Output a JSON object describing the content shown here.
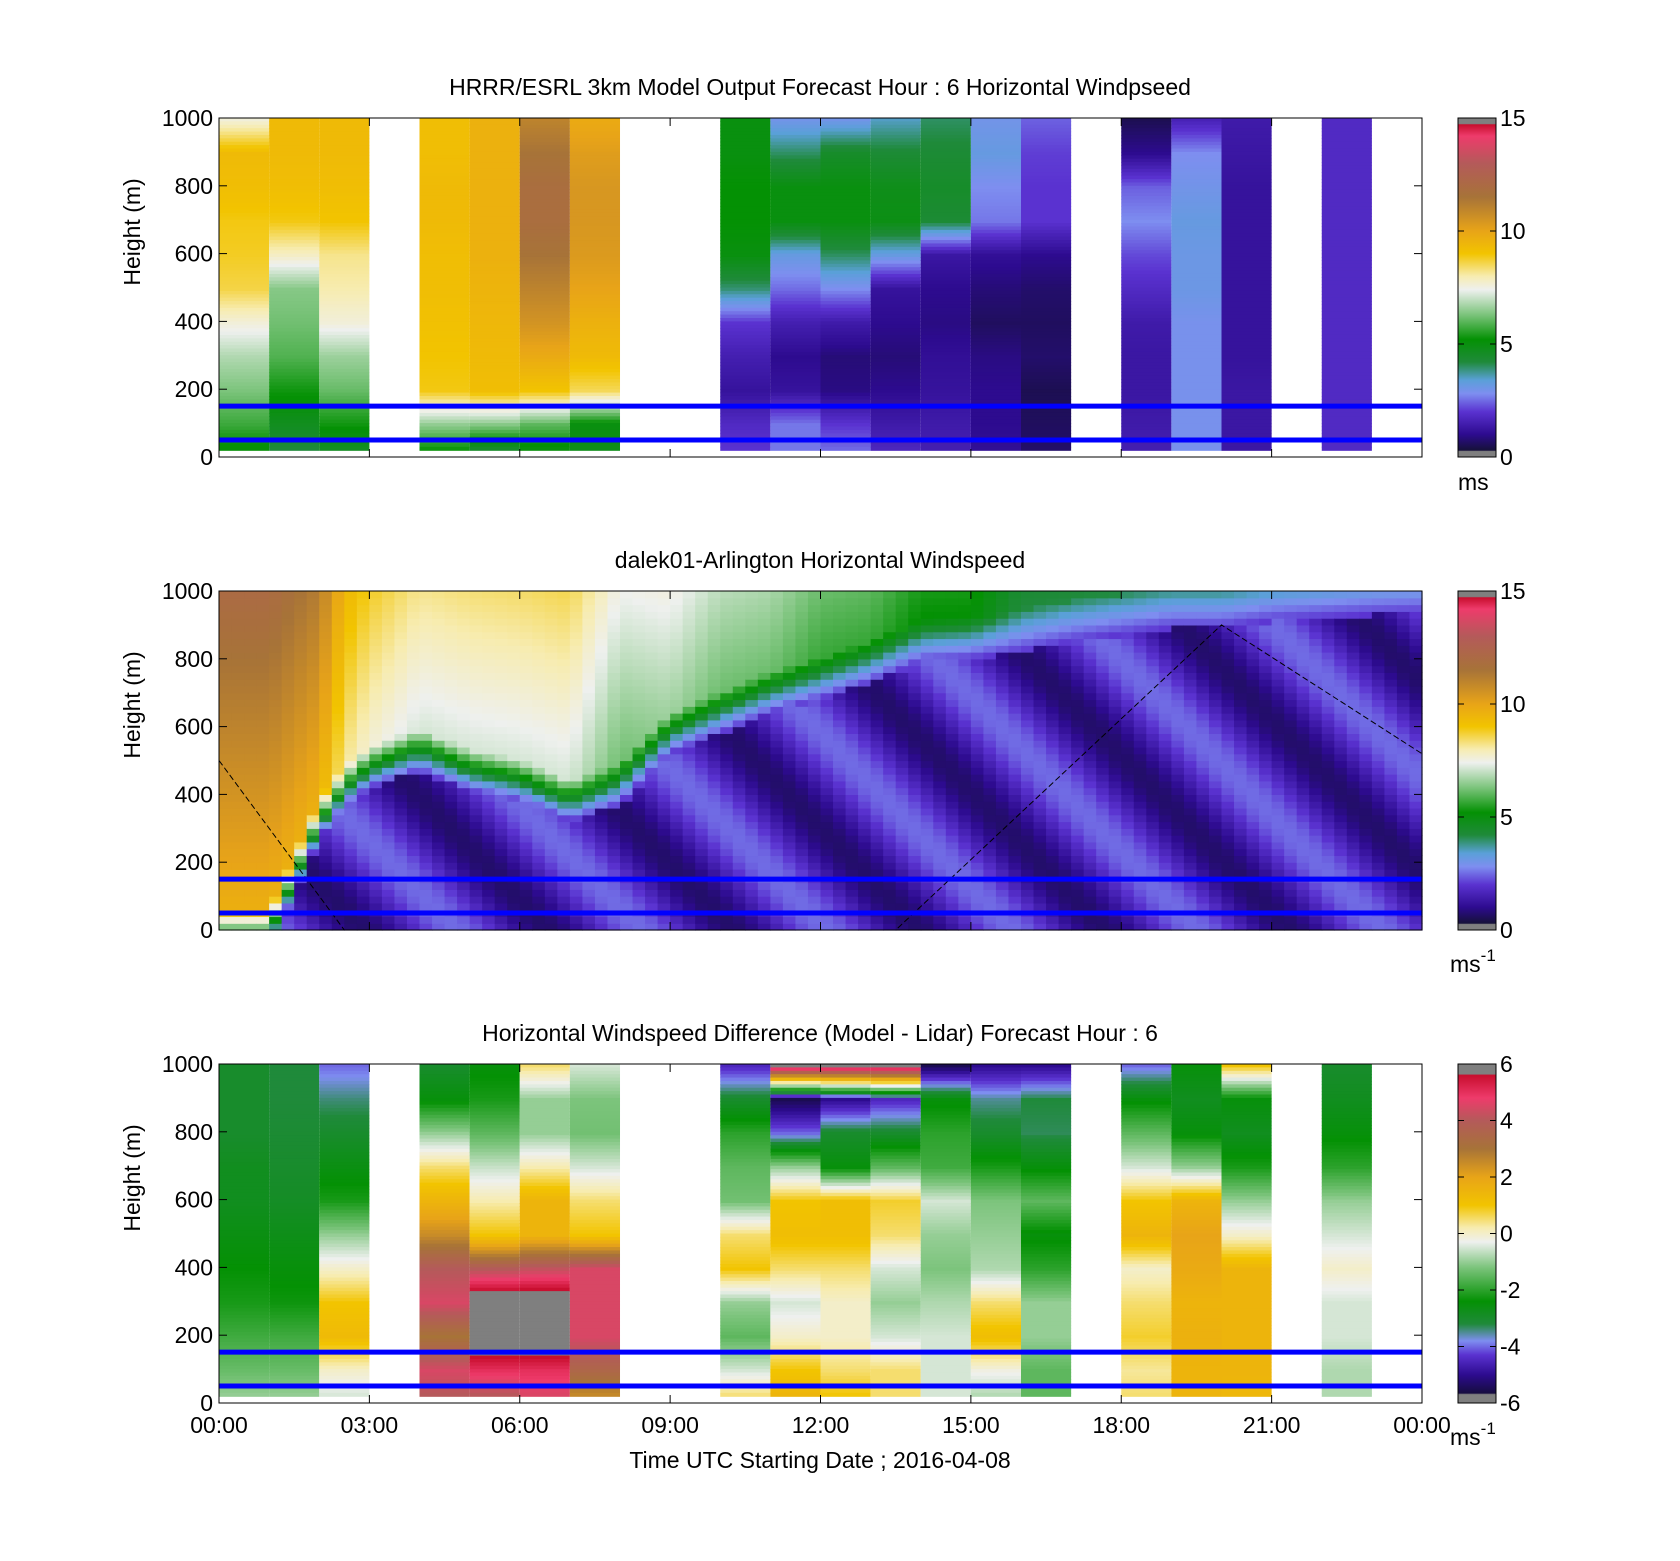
{
  "chart_data": [
    {
      "type": "heatmap",
      "title": "HRRR/ESRL 3km Model Output   Forecast Hour : 6 Horizontal Windpseed",
      "ylabel": "Height (m)",
      "xlabel": "",
      "ylim": [
        0,
        1000
      ],
      "yticks": [
        "0",
        "200",
        "400",
        "600",
        "800",
        "1000"
      ],
      "xticks": [
        "",
        "",
        "",
        "",
        "",
        "",
        "",
        "",
        ""
      ],
      "colorbar": {
        "ticks": [
          "0",
          "5",
          "10",
          "15"
        ],
        "range": [
          0,
          15
        ],
        "unit": "ms"
      },
      "reference_heights_m": [
        50,
        150
      ],
      "x_hours": [
        0.5,
        1.5,
        2.5,
        4.5,
        5.5,
        6.5,
        7.5,
        10.5,
        11.5,
        12.5,
        13.5,
        14.5,
        15.5,
        16.5,
        18.5,
        19.5,
        20.5,
        22.5
      ],
      "heights_m": [
        1000,
        900,
        800,
        700,
        600,
        500,
        400,
        300,
        200,
        100,
        25
      ],
      "values": [
        [
          7.6,
          9.3,
          9.2,
          8.9,
          8.8,
          8.6,
          7.6,
          6.8,
          6.3,
          5.7,
          5.1
        ],
        [
          9.3,
          9.3,
          9.2,
          8.9,
          7.8,
          6.4,
          6.2,
          5.9,
          5.3,
          4.7,
          4.2
        ],
        [
          9.3,
          9.3,
          9.2,
          9.0,
          8.2,
          8.0,
          7.6,
          6.6,
          6.1,
          5.3,
          4.6
        ],
        [
          9.2,
          9.2,
          9.3,
          9.3,
          9.2,
          9.2,
          9.1,
          9.0,
          8.9,
          6.5,
          5.2
        ],
        [
          9.6,
          9.6,
          9.6,
          9.6,
          9.6,
          9.5,
          9.4,
          9.3,
          9.2,
          6.4,
          4.4
        ],
        [
          11.0,
          11.5,
          11.8,
          11.8,
          11.5,
          11.0,
          10.5,
          9.8,
          9.0,
          6.0,
          5.0
        ],
        [
          9.8,
          10.2,
          10.4,
          10.4,
          10.3,
          10.0,
          9.6,
          9.3,
          8.5,
          5.0,
          4.8
        ],
        [
          5.0,
          5.0,
          5.2,
          5.2,
          5.0,
          3.9,
          2.0,
          1.5,
          1.2,
          1.8,
          2.0
        ],
        [
          3.0,
          4.0,
          5.0,
          5.0,
          3.2,
          2.5,
          1.5,
          1.0,
          1.2,
          2.6,
          2.6
        ],
        [
          3.0,
          4.5,
          5.0,
          5.0,
          4.0,
          2.8,
          1.4,
          0.8,
          0.9,
          2.0,
          2.5
        ],
        [
          3.5,
          4.3,
          4.8,
          4.9,
          3.2,
          1.2,
          1.0,
          0.8,
          1.0,
          1.4,
          1.7
        ],
        [
          4.0,
          4.3,
          4.5,
          4.3,
          1.3,
          1.0,
          0.9,
          1.1,
          1.2,
          1.4,
          1.5
        ],
        [
          3.0,
          3.2,
          2.8,
          2.6,
          1.1,
          0.8,
          0.6,
          0.9,
          1.0,
          1.0,
          1.1
        ],
        [
          2.4,
          2.1,
          2.0,
          2.0,
          1.0,
          0.7,
          0.6,
          0.7,
          0.5,
          0.6,
          0.7
        ],
        [
          0.5,
          1.0,
          2.4,
          2.8,
          2.2,
          1.8,
          1.4,
          1.3,
          1.3,
          1.4,
          1.5
        ],
        [
          1.6,
          2.8,
          3.0,
          3.2,
          3.1,
          3.1,
          2.9,
          2.9,
          2.9,
          2.9,
          2.9
        ],
        [
          1.4,
          1.3,
          1.2,
          1.2,
          1.2,
          1.2,
          1.2,
          1.2,
          1.3,
          1.3,
          1.3
        ],
        [
          1.8,
          1.8,
          1.8,
          1.8,
          1.8,
          1.8,
          1.8,
          1.8,
          1.8,
          1.8,
          1.8
        ]
      ]
    },
    {
      "type": "heatmap",
      "title": "dalek01-Arlington  Horizontal Windspeed",
      "ylabel": "Height (m)",
      "xlabel": "",
      "ylim": [
        0,
        1000
      ],
      "yticks": [
        "0",
        "200",
        "400",
        "600",
        "800",
        "1000"
      ],
      "xticks": [
        "",
        "",
        "",
        "",
        "",
        "",
        "",
        "",
        ""
      ],
      "colorbar": {
        "ticks": [
          "0",
          "5",
          "10",
          "15"
        ],
        "range": [
          0,
          15
        ],
        "unit_base": "ms",
        "unit_exp": "-1"
      },
      "reference_heights_m": [
        50,
        150
      ],
      "x_hours": [
        0,
        1,
        2,
        2.5,
        3,
        4,
        5,
        6,
        7,
        8,
        9,
        10,
        11,
        12,
        13,
        14,
        15,
        16,
        17,
        18,
        19,
        20,
        21,
        22,
        23,
        24
      ],
      "boundary_heights_m": [
        [
          9.5,
          0
        ],
        [
          9.5,
          0
        ],
        [
          9.5,
          330
        ],
        [
          8.0,
          420
        ],
        [
          7.5,
          480
        ],
        [
          7.0,
          530
        ],
        [
          7.0,
          470
        ],
        [
          7.0,
          440
        ],
        [
          7.0,
          380
        ],
        [
          6.0,
          430
        ],
        [
          6.5,
          580
        ],
        [
          6.0,
          640
        ],
        [
          6.0,
          700
        ],
        [
          5.5,
          740
        ],
        [
          5.5,
          790
        ],
        [
          5.0,
          850
        ],
        [
          5.0,
          860
        ],
        [
          4.0,
          880
        ],
        [
          4.0,
          910
        ],
        [
          4.0,
          930
        ],
        [
          4.0,
          950
        ],
        [
          4.0,
          950
        ],
        [
          4.0,
          970
        ],
        [
          4.0,
          980
        ],
        [
          4.0,
          990
        ],
        [
          4.0,
          995
        ]
      ],
      "curve": [
        [
          0,
          500
        ],
        [
          2.5,
          0
        ],
        [
          13.5,
          0
        ],
        [
          20,
          900
        ],
        [
          24,
          520
        ]
      ]
    },
    {
      "type": "heatmap",
      "title": "Horizontal Windspeed Difference (Model - Lidar) Forecast Hour : 6",
      "ylabel": "Height (m)",
      "xlabel": "Time UTC  Starting Date ; 2016-04-08",
      "ylim": [
        0,
        1000
      ],
      "yticks": [
        "0",
        "200",
        "400",
        "600",
        "800",
        "1000"
      ],
      "xticks": [
        "00:00",
        "03:00",
        "06:00",
        "09:00",
        "12:00",
        "15:00",
        "18:00",
        "21:00",
        "00:00"
      ],
      "colorbar": {
        "ticks": [
          "-6",
          "-4",
          "-2",
          "0",
          "2",
          "4",
          "6"
        ],
        "range": [
          -6,
          6
        ],
        "unit_base": "ms",
        "unit_exp": "-1"
      },
      "reference_heights_m": [
        50,
        150
      ],
      "x_hours": [
        0.5,
        1.5,
        2.5,
        4.5,
        5.5,
        6.5,
        7.5,
        10.5,
        11.5,
        12.5,
        13.5,
        14.5,
        15.5,
        16.5,
        18.5,
        19.5,
        20.5,
        22.5
      ],
      "heights_m": [
        1000,
        900,
        800,
        700,
        600,
        500,
        400,
        300,
        200,
        100,
        25
      ],
      "values": [
        [
          -3.0,
          -3.0,
          -3.0,
          -2.8,
          -2.8,
          -2.6,
          -2.4,
          -2.2,
          -1.8,
          -1.4,
          -1.0
        ],
        [
          -3.2,
          -3.2,
          -3.1,
          -3.0,
          -2.9,
          -2.7,
          -2.5,
          -2.3,
          -1.8,
          -1.4,
          -1.0
        ],
        [
          -4.0,
          -3.4,
          -3.0,
          -2.6,
          -2.2,
          -1.0,
          0.0,
          1.0,
          1.3,
          0.0,
          -0.5
        ],
        [
          -3.0,
          -2.5,
          -1.0,
          0.5,
          1.5,
          2.5,
          4.0,
          4.5,
          3.0,
          4.5,
          4.0
        ],
        [
          -2.5,
          -2.2,
          -1.5,
          -0.6,
          0.2,
          1.0,
          4.0,
          6.5,
          6.5,
          5.0,
          4.0
        ],
        [
          0.5,
          -1.0,
          -1.0,
          0.2,
          1.5,
          1.5,
          4.2,
          6.5,
          6.5,
          5.0,
          4.5
        ],
        [
          -0.5,
          -1.2,
          -1.3,
          -0.5,
          0.5,
          1.0,
          4.5,
          4.5,
          4.5,
          3.5,
          2.5
        ],
        [
          -4.5,
          -3.0,
          -2.0,
          -1.5,
          -1.3,
          0.5,
          1.0,
          -1.0,
          -1.5,
          -0.5,
          0.5
        ],
        [
          6.0,
          -5.5,
          -4.0,
          -1.0,
          1.0,
          1.2,
          0.5,
          -0.5,
          0.0,
          1.0,
          1.5
        ],
        [
          6.0,
          -5.0,
          -3.0,
          -2.5,
          1.2,
          1.2,
          0.5,
          0.0,
          0.0,
          0.5,
          1.0
        ],
        [
          6.0,
          -4.5,
          -3.0,
          -1.5,
          0.8,
          0.5,
          -0.5,
          -1.0,
          -0.5,
          0.5,
          0.5
        ],
        [
          -5.5,
          -2.5,
          -2.0,
          -1.8,
          -0.5,
          -1.0,
          -1.2,
          -0.8,
          -0.5,
          -0.5,
          -0.5
        ],
        [
          -5.0,
          -3.5,
          -3.0,
          -2.2,
          -1.2,
          -1.0,
          -0.8,
          0.5,
          1.2,
          -0.2,
          -0.8
        ],
        [
          -5.0,
          -3.2,
          -3.3,
          -2.5,
          -1.5,
          -2.5,
          -2.0,
          -1.0,
          -1.0,
          -1.5,
          -1.5
        ],
        [
          -4.0,
          -2.5,
          -1.5,
          -0.5,
          1.0,
          1.5,
          0.0,
          0.5,
          0.8,
          0.3,
          0.5
        ],
        [
          -2.5,
          -2.8,
          -2.5,
          -1.0,
          1.5,
          2.0,
          1.8,
          1.5,
          1.6,
          1.5,
          1.5
        ],
        [
          1.0,
          -2.5,
          -2.8,
          -2.2,
          -1.0,
          0.0,
          1.5,
          1.5,
          1.5,
          1.5,
          1.4
        ],
        [
          -3.0,
          -2.8,
          -2.5,
          -2.0,
          -1.0,
          -0.5,
          0.0,
          -0.5,
          -0.5,
          -0.8,
          -0.8
        ]
      ]
    }
  ]
}
